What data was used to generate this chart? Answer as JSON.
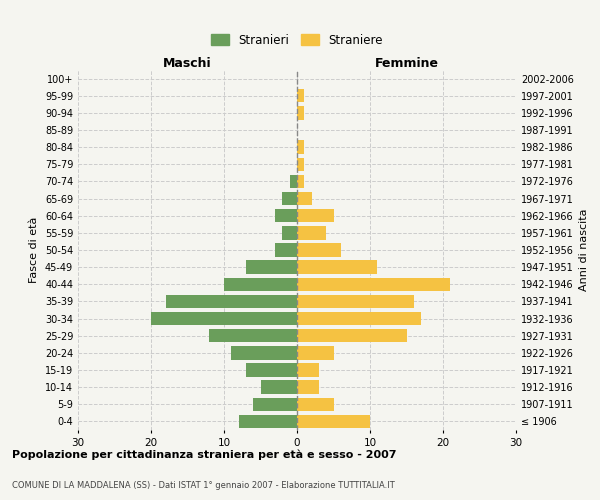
{
  "age_groups": [
    "100+",
    "95-99",
    "90-94",
    "85-89",
    "80-84",
    "75-79",
    "70-74",
    "65-69",
    "60-64",
    "55-59",
    "50-54",
    "45-49",
    "40-44",
    "35-39",
    "30-34",
    "25-29",
    "20-24",
    "15-19",
    "10-14",
    "5-9",
    "0-4"
  ],
  "birth_years": [
    "≤ 1906",
    "1907-1911",
    "1912-1916",
    "1917-1921",
    "1922-1926",
    "1927-1931",
    "1932-1936",
    "1937-1941",
    "1942-1946",
    "1947-1951",
    "1952-1956",
    "1957-1961",
    "1962-1966",
    "1967-1971",
    "1972-1976",
    "1977-1981",
    "1982-1986",
    "1987-1991",
    "1992-1996",
    "1997-2001",
    "2002-2006"
  ],
  "maschi": [
    0,
    0,
    0,
    0,
    0,
    0,
    1,
    2,
    3,
    2,
    3,
    7,
    10,
    18,
    20,
    12,
    9,
    7,
    5,
    6,
    8
  ],
  "femmine": [
    0,
    1,
    1,
    0,
    1,
    1,
    1,
    2,
    5,
    4,
    6,
    11,
    21,
    16,
    17,
    15,
    5,
    3,
    3,
    5,
    10
  ],
  "maschi_color": "#6a9e5b",
  "femmine_color": "#f5c242",
  "background_color": "#f5f5f0",
  "grid_color": "#cccccc",
  "title": "Popolazione per cittadinanza straniera per età e sesso - 2007",
  "subtitle": "COMUNE DI LA MADDALENA (SS) - Dati ISTAT 1° gennaio 2007 - Elaborazione TUTTITALIA.IT",
  "xlabel_left": "Maschi",
  "xlabel_right": "Femmine",
  "ylabel_left": "Fasce di età",
  "ylabel_right": "Anni di nascita",
  "legend_maschi": "Stranieri",
  "legend_femmine": "Straniere",
  "xlim": 30
}
